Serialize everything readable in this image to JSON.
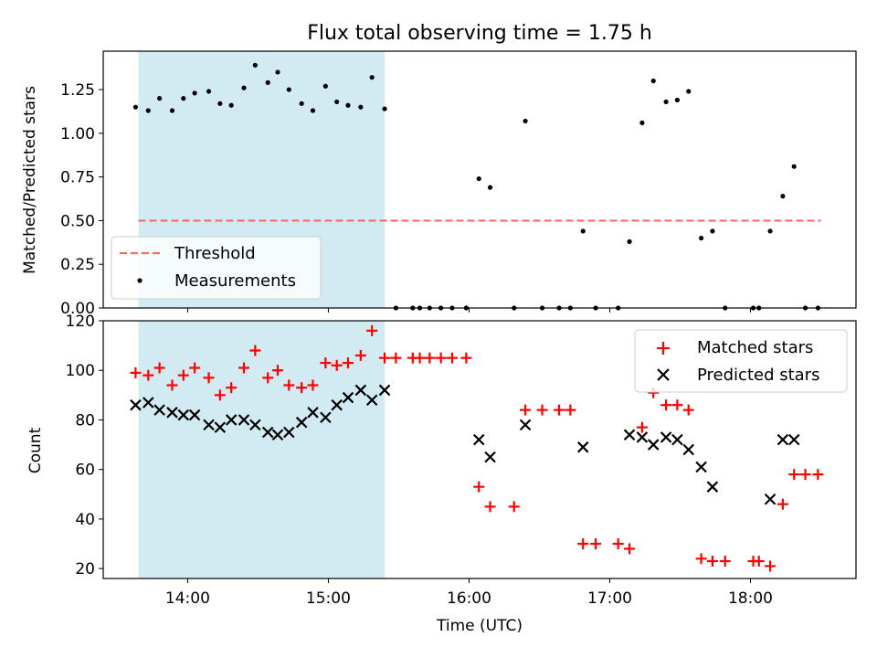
{
  "title": "Flux total observing time = 1.75 h",
  "colors": {
    "shade": "#add8e6",
    "threshold": "#ff6666",
    "matched": "#ff0000",
    "predicted": "#000000",
    "measurement": "#000000"
  },
  "chart_data": [
    {
      "type": "scatter",
      "ylabel": "Matched/Predicted stars",
      "xlim": [
        13.4,
        18.75
      ],
      "ylim": [
        0,
        1.47
      ],
      "yticks": [
        0.0,
        0.25,
        0.5,
        0.75,
        1.0,
        1.25
      ],
      "ytick_labels": [
        "0.00",
        "0.25",
        "0.50",
        "0.75",
        "1.00",
        "1.25"
      ],
      "shaded_span": [
        13.65,
        15.4
      ],
      "threshold": {
        "label": "Threshold",
        "value": 0.5,
        "x": [
          13.65,
          18.5
        ]
      },
      "legend": [
        "Threshold",
        "Measurements"
      ],
      "series": [
        {
          "name": "Measurements",
          "x": [
            13.63,
            13.72,
            13.8,
            13.89,
            13.97,
            14.05,
            14.15,
            14.23,
            14.31,
            14.4,
            14.48,
            14.57,
            14.64,
            14.72,
            14.81,
            14.89,
            14.98,
            15.06,
            15.14,
            15.23,
            15.31,
            15.4,
            15.48,
            15.6,
            15.65,
            15.72,
            15.8,
            15.88,
            15.98,
            16.07,
            16.15,
            16.32,
            16.4,
            16.52,
            16.64,
            16.72,
            16.81,
            16.9,
            17.06,
            17.14,
            17.23,
            17.31,
            17.4,
            17.48,
            17.56,
            17.65,
            17.73,
            17.82,
            18.02,
            18.06,
            18.14,
            18.23,
            18.31,
            18.39,
            18.48
          ],
          "y": [
            1.15,
            1.13,
            1.2,
            1.13,
            1.2,
            1.23,
            1.24,
            1.17,
            1.16,
            1.26,
            1.39,
            1.29,
            1.35,
            1.25,
            1.17,
            1.13,
            1.27,
            1.18,
            1.16,
            1.15,
            1.32,
            1.14,
            0.0,
            0.0,
            0.0,
            0.0,
            0.0,
            0.0,
            0.0,
            0.74,
            0.69,
            0.0,
            1.07,
            0.0,
            0.0,
            0.0,
            0.44,
            0.0,
            0.0,
            0.38,
            1.06,
            1.3,
            1.18,
            1.19,
            1.24,
            0.4,
            0.44,
            0.0,
            0.0,
            0.0,
            0.44,
            0.64,
            0.81,
            0.0,
            0.0
          ]
        }
      ]
    },
    {
      "type": "scatter",
      "ylabel": "Count",
      "xlabel": "Time (UTC)",
      "xlim": [
        13.4,
        18.75
      ],
      "ylim": [
        16,
        120
      ],
      "yticks": [
        20,
        40,
        60,
        80,
        100,
        120
      ],
      "xticks": [
        14,
        15,
        16,
        17,
        18
      ],
      "xtick_labels": [
        "14:00",
        "15:00",
        "16:00",
        "17:00",
        "18:00"
      ],
      "shaded_span": [
        13.65,
        15.4
      ],
      "legend": [
        "Matched stars",
        "Predicted stars"
      ],
      "series": [
        {
          "name": "Matched stars",
          "x": [
            13.63,
            13.72,
            13.8,
            13.89,
            13.97,
            14.05,
            14.15,
            14.23,
            14.31,
            14.4,
            14.48,
            14.57,
            14.64,
            14.72,
            14.81,
            14.89,
            14.98,
            15.06,
            15.14,
            15.23,
            15.31,
            15.4,
            15.48,
            15.6,
            15.65,
            15.72,
            15.8,
            15.88,
            15.98,
            16.07,
            16.15,
            16.32,
            16.4,
            16.52,
            16.64,
            16.72,
            16.81,
            16.9,
            17.06,
            17.14,
            17.23,
            17.31,
            17.4,
            17.48,
            17.56,
            17.65,
            17.73,
            17.82,
            18.02,
            18.06,
            18.14,
            18.23,
            18.31,
            18.39,
            18.48
          ],
          "y": [
            99,
            98,
            101,
            94,
            98,
            101,
            97,
            90,
            93,
            101,
            108,
            97,
            100,
            94,
            93,
            94,
            103,
            102,
            103,
            106,
            116,
            105,
            105,
            105,
            105,
            105,
            105,
            105,
            105,
            53,
            45,
            45,
            84,
            84,
            84,
            84,
            30,
            30,
            30,
            28,
            77,
            91,
            86,
            86,
            84,
            24,
            23,
            23,
            23,
            23,
            21,
            46,
            58,
            58,
            58
          ]
        },
        {
          "name": "Predicted stars",
          "x": [
            13.63,
            13.72,
            13.8,
            13.89,
            13.97,
            14.05,
            14.15,
            14.23,
            14.31,
            14.4,
            14.48,
            14.57,
            14.64,
            14.72,
            14.81,
            14.89,
            14.98,
            15.06,
            15.14,
            15.23,
            15.31,
            15.4,
            16.07,
            16.15,
            16.4,
            16.81,
            17.14,
            17.23,
            17.31,
            17.4,
            17.48,
            17.56,
            17.65,
            17.73,
            18.14,
            18.23,
            18.31
          ],
          "y": [
            86,
            87,
            84,
            83,
            82,
            82,
            78,
            77,
            80,
            80,
            78,
            75,
            74,
            75,
            79,
            83,
            81,
            86,
            89,
            92,
            88,
            92,
            72,
            65,
            78,
            69,
            74,
            73,
            70,
            73,
            72,
            68,
            61,
            53,
            48,
            72,
            72
          ]
        }
      ]
    }
  ]
}
